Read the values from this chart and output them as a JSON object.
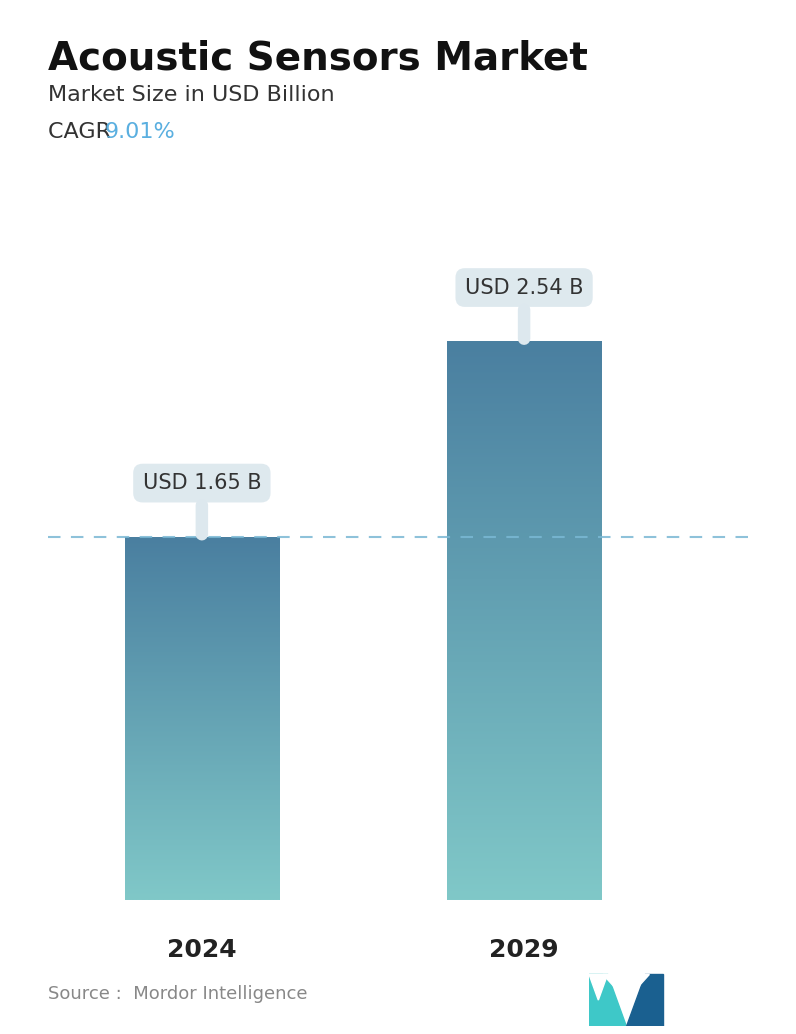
{
  "title": "Acoustic Sensors Market",
  "subtitle": "Market Size in USD Billion",
  "cagr_label": "CAGR ",
  "cagr_value": "9.01%",
  "cagr_color": "#5aafe0",
  "categories": [
    "2024",
    "2029"
  ],
  "values": [
    1.65,
    2.54
  ],
  "bar_labels": [
    "USD 1.65 B",
    "USD 2.54 B"
  ],
  "bar_top_colors": [
    "#4a7fa0",
    "#4a7fa0"
  ],
  "bar_bottom_colors": [
    "#80c8c8",
    "#80c8c8"
  ],
  "dashed_line_color": "#7ab8d4",
  "dashed_line_y": 1.65,
  "ylim": [
    0,
    3.2
  ],
  "source_text": "Source :  Mordor Intelligence",
  "source_color": "#888888",
  "bg_color": "#ffffff",
  "title_fontsize": 28,
  "subtitle_fontsize": 16,
  "cagr_fontsize": 16,
  "xlabel_fontsize": 18,
  "annotation_fontsize": 15,
  "bar_positions": [
    0.22,
    0.68
  ],
  "bar_width": 0.22
}
